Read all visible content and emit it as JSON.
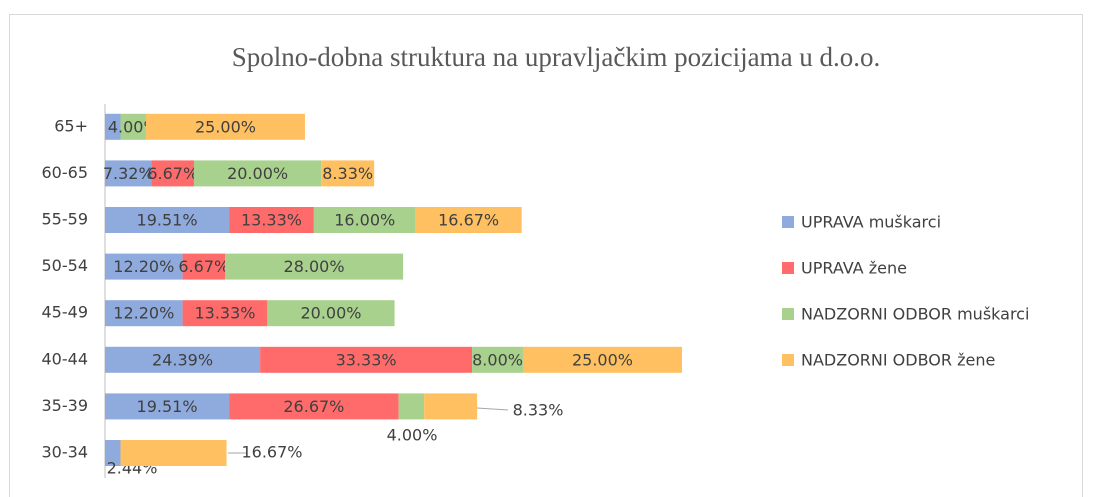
{
  "chart_data": {
    "type": "stacked-bar-horizontal",
    "title": "Spolno-dobna struktura na upravljačkim pozicijama u d.o.o.",
    "categories": [
      "30-34",
      "35-39",
      "40-44",
      "45-49",
      "50-54",
      "55-59",
      "60-65",
      "65+"
    ],
    "series": [
      {
        "name": "UPRAVA muškarci",
        "color": "#8faadc",
        "values": [
          2.44,
          19.51,
          24.39,
          12.2,
          12.2,
          19.51,
          7.32,
          2.44
        ],
        "value_labels": [
          "2.44%",
          "19.51%",
          "24.39%",
          "12.20%",
          "12.20%",
          "19.51%",
          "7.32%",
          null
        ]
      },
      {
        "name": "UPRAVA žene",
        "color": "#ff6b6b",
        "values": [
          0,
          26.67,
          33.33,
          13.33,
          6.67,
          13.33,
          6.67,
          0
        ],
        "value_labels": [
          null,
          "26.67%",
          "33.33%",
          "13.33%",
          "6.67%",
          "13.33%",
          "6.67%",
          null
        ]
      },
      {
        "name": "NADZORNI ODBOR muškarci",
        "color": "#a9d18e",
        "values": [
          0,
          4.0,
          8.0,
          20.0,
          28.0,
          16.0,
          20.0,
          4.0
        ],
        "value_labels": [
          null,
          "4.00%",
          "8.00%",
          "20.00%",
          "28.00%",
          "16.00%",
          "20.00%",
          "4.00%"
        ]
      },
      {
        "name": "NADZORNI ODBOR žene",
        "color": "#ffc061",
        "values": [
          16.67,
          8.33,
          25.0,
          0,
          0,
          16.67,
          8.33,
          25.0
        ],
        "value_labels": [
          "16.67%",
          "8.33%",
          "25.00%",
          null,
          null,
          "16.67%",
          "8.33%",
          "25.00%"
        ]
      }
    ],
    "legend": "right"
  }
}
